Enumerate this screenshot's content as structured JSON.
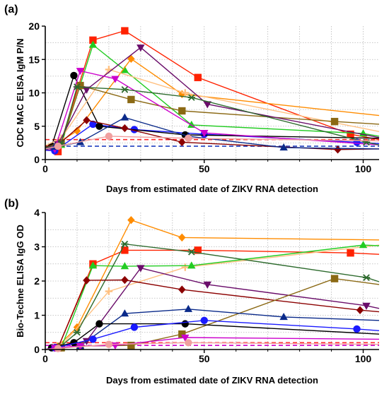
{
  "chart_data": [
    {
      "panel": "(a)",
      "type": "line",
      "xlabel": "Days from estimated date of ZIKV RNA detection",
      "ylabel": "CDC MAC ELISA IgM P/N",
      "xlim": [
        0,
        105
      ],
      "ylim": [
        0,
        20
      ],
      "xticks": [
        0,
        50,
        100
      ],
      "yticks": [
        0,
        5,
        10,
        15,
        20
      ],
      "grid": true,
      "cutoffs": [
        {
          "y": 2.0,
          "color": "#1f3fbf",
          "style": "dashed"
        },
        {
          "y": 3.0,
          "color": "#ff2a2a",
          "style": "dashed"
        }
      ],
      "series": [
        {
          "color": "#ff2200",
          "marker": "square",
          "x": [
            0,
            4,
            15,
            25,
            48,
            96,
            105
          ],
          "y": [
            1.5,
            1.2,
            17.9,
            19.3,
            12.3,
            3.8,
            3.0
          ]
        },
        {
          "color": "#1a1aff",
          "marker": "circle",
          "x": [
            0,
            3,
            15,
            28,
            50,
            98,
            105
          ],
          "y": [
            1.4,
            1.3,
            5.3,
            4.5,
            3.8,
            2.6,
            2.4
          ]
        },
        {
          "color": "#000000",
          "marker": "circle",
          "x": [
            0,
            2,
            9,
            17,
            44,
            105
          ],
          "y": [
            1.5,
            2.0,
            12.6,
            5.0,
            3.7,
            3.2
          ]
        },
        {
          "color": "#22cc22",
          "marker": "triangle",
          "x": [
            0,
            5,
            15,
            25,
            46,
            100,
            105
          ],
          "y": [
            1.6,
            2.2,
            17.2,
            13.4,
            5.2,
            3.9,
            3.5
          ]
        },
        {
          "color": "#ff8c00",
          "marker": "diamond",
          "x": [
            0,
            4,
            10,
            27,
            43,
            105
          ],
          "y": [
            1.7,
            2.5,
            4.3,
            15.1,
            9.8,
            6.6
          ]
        },
        {
          "color": "#ffc080",
          "marker": "plus",
          "x": [
            0,
            5,
            20,
            44,
            105
          ],
          "y": [
            2.1,
            3.2,
            13.5,
            10.0,
            4.2
          ]
        },
        {
          "color": "#8b6914",
          "marker": "square",
          "x": [
            0,
            5,
            11,
            27,
            43,
            91,
            105
          ],
          "y": [
            1.9,
            2.5,
            11.1,
            9.0,
            7.3,
            5.7,
            5.3
          ]
        },
        {
          "color": "#8b0000",
          "marker": "diamond",
          "x": [
            0,
            4,
            13,
            25,
            43,
            92,
            105
          ],
          "y": [
            2.0,
            2.2,
            5.9,
            4.7,
            2.6,
            1.5,
            1.6
          ]
        },
        {
          "color": "#6a0d6a",
          "marker": "triangle-down",
          "x": [
            0,
            4,
            13,
            30,
            51,
            105
          ],
          "y": [
            1.7,
            2.3,
            10.5,
            16.8,
            8.3,
            3.3
          ]
        },
        {
          "color": "#cc00cc",
          "marker": "triangle-down",
          "x": [
            0,
            3,
            11,
            22,
            50,
            105
          ],
          "y": [
            1.6,
            1.6,
            13.3,
            12.1,
            4.0,
            2.2
          ]
        },
        {
          "color": "#2e6b2e",
          "marker": "asterisk",
          "x": [
            0,
            5,
            10,
            25,
            46,
            101,
            105
          ],
          "y": [
            1.8,
            2.4,
            10.9,
            10.5,
            9.3,
            2.6,
            2.2
          ]
        },
        {
          "color": "#0a2a8a",
          "marker": "triangle",
          "x": [
            0,
            3,
            11,
            25,
            45,
            75,
            105
          ],
          "y": [
            1.5,
            1.9,
            2.6,
            6.3,
            3.5,
            1.8,
            1.6
          ]
        },
        {
          "color": "#f0a0a0",
          "marker": "circle",
          "x": [
            0,
            4,
            20,
            45,
            105
          ],
          "y": [
            1.6,
            2.0,
            3.5,
            3.2,
            2.8
          ]
        }
      ]
    },
    {
      "panel": "(b)",
      "type": "line",
      "xlabel": "Days from estimated date of ZIKV RNA detection",
      "ylabel": "Bio-Techne ELISA IgG OD",
      "xlim": [
        0,
        105
      ],
      "ylim": [
        0,
        4
      ],
      "xticks": [
        0,
        50,
        100
      ],
      "yticks": [
        0,
        1,
        2,
        3,
        4
      ],
      "grid": true,
      "cutoffs": [
        {
          "y": 0.2,
          "color": "#ff2a2a",
          "style": "dashed"
        },
        {
          "y": 0.12,
          "color": "#cc00cc",
          "style": "dashed"
        }
      ],
      "series": [
        {
          "color": "#ff2200",
          "marker": "square",
          "x": [
            0,
            4,
            15,
            25,
            48,
            96,
            105
          ],
          "y": [
            0.0,
            0.05,
            2.5,
            2.9,
            2.9,
            2.82,
            2.78
          ]
        },
        {
          "color": "#ff8c00",
          "marker": "diamond",
          "x": [
            0,
            4,
            10,
            27,
            43,
            105
          ],
          "y": [
            0.0,
            0.1,
            0.65,
            3.78,
            3.27,
            3.2
          ]
        },
        {
          "color": "#ffc080",
          "marker": "plus",
          "x": [
            0,
            5,
            20,
            44,
            105
          ],
          "y": [
            0.0,
            0.1,
            1.7,
            2.4,
            3.05
          ]
        },
        {
          "color": "#22cc22",
          "marker": "triangle",
          "x": [
            0,
            5,
            15,
            25,
            46,
            100,
            105
          ],
          "y": [
            0.0,
            0.05,
            2.45,
            2.43,
            2.45,
            3.05,
            3.03
          ]
        },
        {
          "color": "#2e6b2e",
          "marker": "asterisk",
          "x": [
            0,
            5,
            10,
            25,
            46,
            101,
            105
          ],
          "y": [
            0.0,
            0.1,
            0.5,
            3.08,
            2.85,
            2.1,
            1.98
          ]
        },
        {
          "color": "#6a0d6a",
          "marker": "triangle-down",
          "x": [
            0,
            4,
            13,
            30,
            51,
            101,
            105
          ],
          "y": [
            0.0,
            0.08,
            0.25,
            2.38,
            1.9,
            1.28,
            1.2
          ]
        },
        {
          "color": "#8b0000",
          "marker": "diamond",
          "x": [
            0,
            4,
            13,
            25,
            43,
            99,
            105
          ],
          "y": [
            0.0,
            0.05,
            2.02,
            2.03,
            1.75,
            1.15,
            1.1
          ]
        },
        {
          "color": "#8b6914",
          "marker": "square",
          "x": [
            0,
            5,
            11,
            27,
            43,
            91,
            105
          ],
          "y": [
            0.0,
            0.05,
            0.1,
            0.12,
            0.45,
            2.07,
            1.9
          ]
        },
        {
          "color": "#0a2a8a",
          "marker": "triangle",
          "x": [
            0,
            3,
            11,
            25,
            45,
            75,
            105
          ],
          "y": [
            0.0,
            0.05,
            0.1,
            1.05,
            1.18,
            0.95,
            0.85
          ]
        },
        {
          "color": "#000000",
          "marker": "circle",
          "x": [
            0,
            2,
            9,
            17,
            44,
            105
          ],
          "y": [
            0.0,
            0.05,
            0.2,
            0.75,
            0.75,
            0.45
          ]
        },
        {
          "color": "#1a1aff",
          "marker": "circle",
          "x": [
            0,
            3,
            15,
            28,
            50,
            98,
            105
          ],
          "y": [
            0.0,
            0.05,
            0.3,
            0.65,
            0.85,
            0.6,
            0.55
          ]
        },
        {
          "color": "#cc00cc",
          "marker": "triangle-down",
          "x": [
            0,
            3,
            11,
            22,
            44,
            105
          ],
          "y": [
            0.0,
            0.05,
            0.1,
            0.12,
            0.35,
            0.3
          ]
        },
        {
          "color": "#f0a0a0",
          "marker": "circle",
          "x": [
            0,
            4,
            20,
            45,
            105
          ],
          "y": [
            0.0,
            0.03,
            0.15,
            0.2,
            0.15
          ]
        }
      ]
    }
  ]
}
